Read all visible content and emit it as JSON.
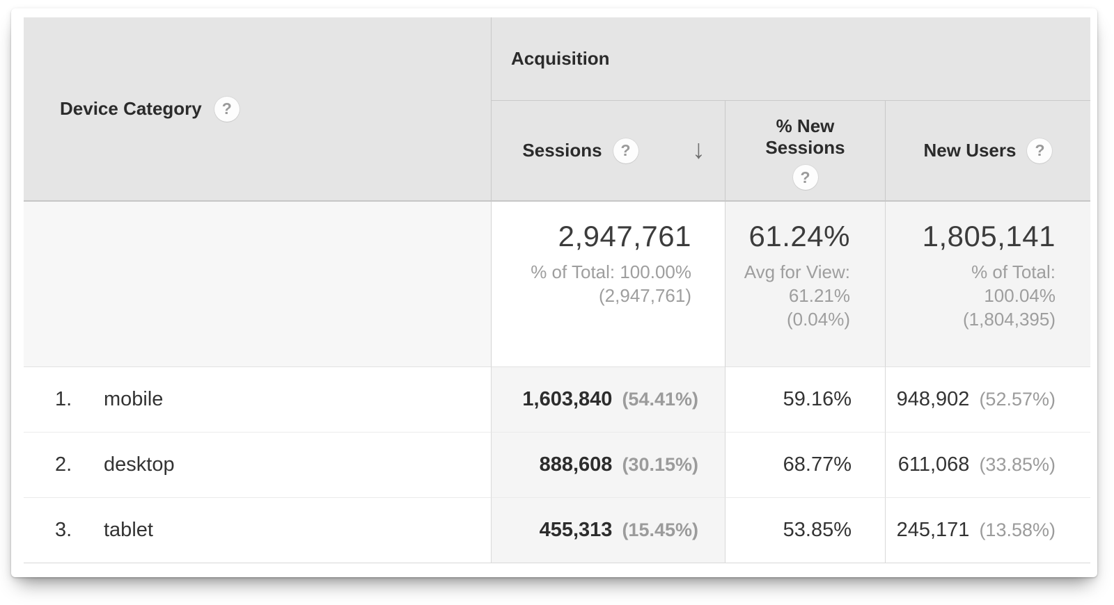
{
  "table": {
    "dimension_header": {
      "label": "Device Category"
    },
    "group_header": "Acquisition",
    "columns": {
      "sessions": {
        "label": "Sessions",
        "sort": "descending"
      },
      "new_sessions": {
        "label_line1": "% New",
        "label_line2": "Sessions"
      },
      "new_users": {
        "label": "New Users"
      }
    },
    "summary": {
      "sessions": {
        "value": "2,947,761",
        "sub_line1": "% of Total: 100.00%",
        "sub_line2": "(2,947,761)"
      },
      "new_sessions": {
        "value": "61.24%",
        "sub_line1": "Avg for View:",
        "sub_line2": "61.21%",
        "sub_line3": "(0.04%)"
      },
      "new_users": {
        "value": "1,805,141",
        "sub_line1": "% of Total:",
        "sub_line2": "100.04%",
        "sub_line3": "(1,804,395)"
      }
    },
    "rows": [
      {
        "index": "1.",
        "category": "mobile",
        "sessions": "1,603,840",
        "sessions_pct": "(54.41%)",
        "new_sessions": "59.16%",
        "new_users": "948,902",
        "new_users_pct": "(52.57%)"
      },
      {
        "index": "2.",
        "category": "desktop",
        "sessions": "888,608",
        "sessions_pct": "(30.15%)",
        "new_sessions": "68.77%",
        "new_users": "611,068",
        "new_users_pct": "(33.85%)"
      },
      {
        "index": "3.",
        "category": "tablet",
        "sessions": "455,313",
        "sessions_pct": "(15.45%)",
        "new_sessions": "53.85%",
        "new_users": "245,171",
        "new_users_pct": "(13.58%)"
      }
    ]
  },
  "icons": {
    "help": "?",
    "sort_descending": "↓"
  },
  "colors": {
    "header_background": "#e5e5e5",
    "sorted_column_background": "#f5f5f5",
    "summary_background": "#f4f4f4",
    "primary_text": "#333333",
    "secondary_text": "#9b9b9b",
    "border": "#c9c9c9"
  }
}
